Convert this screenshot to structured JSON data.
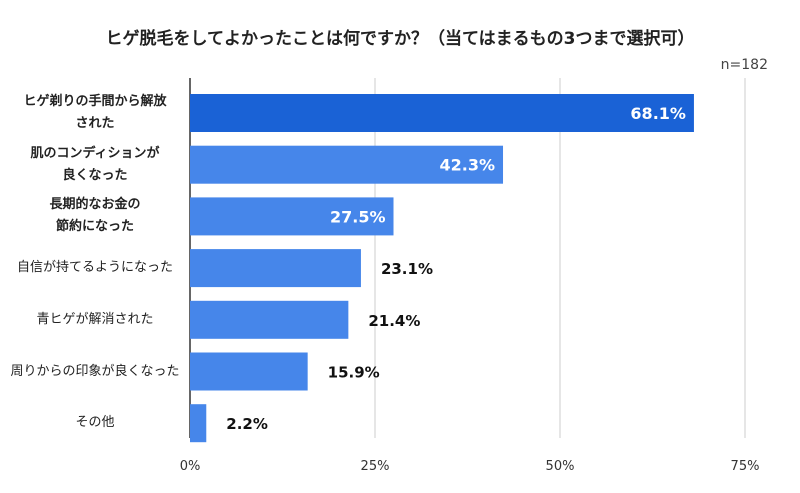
{
  "chart_data": {
    "type": "bar",
    "orientation": "horizontal",
    "title": "ヒゲ脱毛をしてよかったことは何ですか？（当てはまるもの3つまで選択可）",
    "note": "n=182",
    "categories": [
      "ヒゲ剃りの手間から解放された",
      "肌のコンディションが良くなった",
      "長期的なお金の節約になった",
      "自信が持てるようになった",
      "青ヒゲが解消された",
      "周りからの印象が良くなった",
      "その他"
    ],
    "category_lines": [
      [
        "ヒゲ剃りの手間から解放",
        "された"
      ],
      [
        "肌のコンディションが",
        "良くなった"
      ],
      [
        "長期的なお金の",
        "節約になった"
      ],
      [
        "自信が持てるようになった"
      ],
      [
        "青ヒゲが解消された"
      ],
      [
        "周りからの印象が良くなった"
      ],
      [
        "その他"
      ]
    ],
    "values": [
      68.1,
      42.3,
      27.5,
      23.1,
      21.4,
      15.9,
      2.2
    ],
    "data_labels": [
      "68.1%",
      "42.3%",
      "27.5%",
      "23.1%",
      "21.4%",
      "15.9%",
      "2.2%"
    ],
    "x_ticks": [
      "0%",
      "25%",
      "50%",
      "75%"
    ],
    "xlim": [
      0,
      75
    ],
    "grid": true,
    "legend": "none",
    "colors": {
      "highlight": "#1a62d6",
      "bar": "#4686ea",
      "grid": "#cccccc",
      "axis": "#333333"
    }
  }
}
